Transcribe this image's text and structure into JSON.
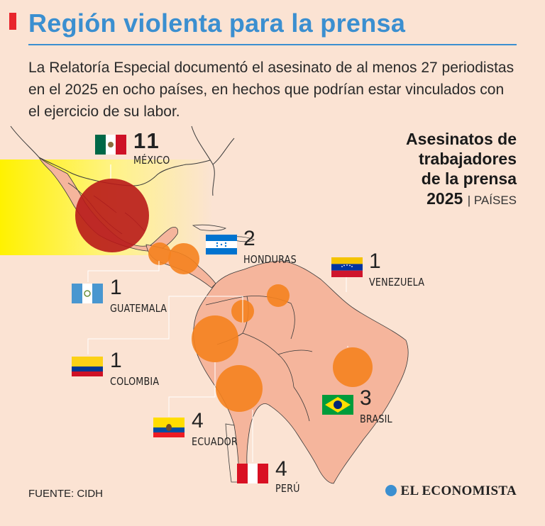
{
  "title": "Región violenta para la prensa",
  "intro": "La Relatoría Especial documentó el asesinato de al menos 27 periodistas en el 2025 en ocho países, en hechos que podrían estar vinculados con el ejercicio de su labor.",
  "side_title": {
    "line1": "Asesinatos de",
    "line2": "trabajadores",
    "line3": "de la prensa",
    "year": "2025",
    "sub": "| PAÍSES"
  },
  "countries": [
    {
      "name": "MÉXICO",
      "count": "11"
    },
    {
      "name": "HONDURAS",
      "count": "2"
    },
    {
      "name": "VENEZUELA",
      "count": "1"
    },
    {
      "name": "GUATEMALA",
      "count": "1"
    },
    {
      "name": "COLOMBIA",
      "count": "1"
    },
    {
      "name": "ECUADOR",
      "count": "4"
    },
    {
      "name": "BRASIL",
      "count": "3"
    },
    {
      "name": "PERÚ",
      "count": "4"
    }
  ],
  "source": "FUENTE: CIDH",
  "logo": "EL ECONOMISTA",
  "colors": {
    "background": "#fbe3d3",
    "title": "#3b8fd0",
    "land": "#f5b59c",
    "mexico_bubble": "#b8191a",
    "bubble": "#f5821f",
    "highlight": "#fff200"
  }
}
